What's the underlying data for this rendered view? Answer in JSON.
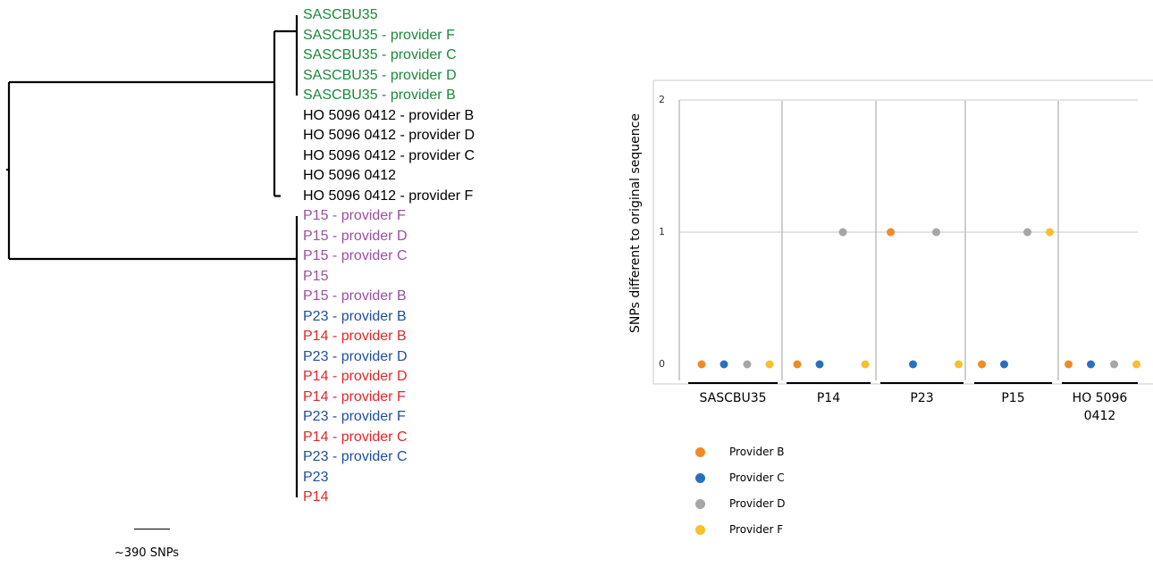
{
  "tree": {
    "leaves": [
      {
        "label": "SASCBU35",
        "color": "#1a8a3a"
      },
      {
        "label": "SASCBU35 - provider F",
        "color": "#1a8a3a"
      },
      {
        "label": "SASCBU35 - provider C",
        "color": "#1a8a3a"
      },
      {
        "label": "SASCBU35 - provider D",
        "color": "#1a8a3a"
      },
      {
        "label": "SASCBU35 - provider B",
        "color": "#1a8a3a"
      },
      {
        "label": "HO 5096 0412 - provider B",
        "color": "#000000"
      },
      {
        "label": "HO 5096 0412 - provider D",
        "color": "#000000"
      },
      {
        "label": "HO 5096 0412 - provider C",
        "color": "#000000"
      },
      {
        "label": "HO 5096 0412",
        "color": "#000000"
      },
      {
        "label": "HO 5096 0412 - provider F",
        "color": "#000000"
      },
      {
        "label": "P15 - provider F",
        "color": "#9b4f9e"
      },
      {
        "label": "P15 - provider D",
        "color": "#9b4f9e"
      },
      {
        "label": "P15 - provider C",
        "color": "#9b4f9e"
      },
      {
        "label": "P15",
        "color": "#9b4f9e"
      },
      {
        "label": "P15 - provider B",
        "color": "#9b4f9e"
      },
      {
        "label": "P23 - provider B",
        "color": "#1f4e9c"
      },
      {
        "label": "P14 - provider B",
        "color": "#e52528"
      },
      {
        "label": "P23 - provider D",
        "color": "#1f4e9c"
      },
      {
        "label": "P14 - provider D",
        "color": "#e52528"
      },
      {
        "label": "P14 - provider F",
        "color": "#e52528"
      },
      {
        "label": "P23 - provider F",
        "color": "#1f4e9c"
      },
      {
        "label": "P14 - provider C",
        "color": "#e52528"
      },
      {
        "label": "P23 - provider C",
        "color": "#1f4e9c"
      },
      {
        "label": "P23",
        "color": "#1f4e9c"
      },
      {
        "label": "P14",
        "color": "#e52528"
      }
    ],
    "scale_label": "~390 SNPs"
  },
  "chart_data": {
    "type": "scatter",
    "ylabel": "SNPs different to original sequence",
    "xlabel": "",
    "ylim": [
      0,
      2
    ],
    "yticks": [
      "0",
      "1",
      "2"
    ],
    "grid": true,
    "legend_position": "bottom-left",
    "categories": [
      "SASCBU35",
      "P14",
      "P23",
      "P15",
      "HO 5096 0412"
    ],
    "category_display": [
      [
        "SASCBU35"
      ],
      [
        "P14"
      ],
      [
        "P23"
      ],
      [
        "P15"
      ],
      [
        "HO 5096",
        "0412"
      ]
    ],
    "series": [
      {
        "name": "Provider B",
        "color": "#f08a24",
        "values": [
          0,
          0,
          1,
          0,
          0
        ]
      },
      {
        "name": "Provider C",
        "color": "#2a6fbf",
        "values": [
          0,
          0,
          0,
          0,
          0
        ]
      },
      {
        "name": "Provider D",
        "color": "#a6a6a6",
        "values": [
          0,
          1,
          1,
          1,
          0
        ]
      },
      {
        "name": "Provider F",
        "color": "#f9bf2c",
        "values": [
          0,
          0,
          0,
          1,
          0
        ]
      }
    ]
  }
}
